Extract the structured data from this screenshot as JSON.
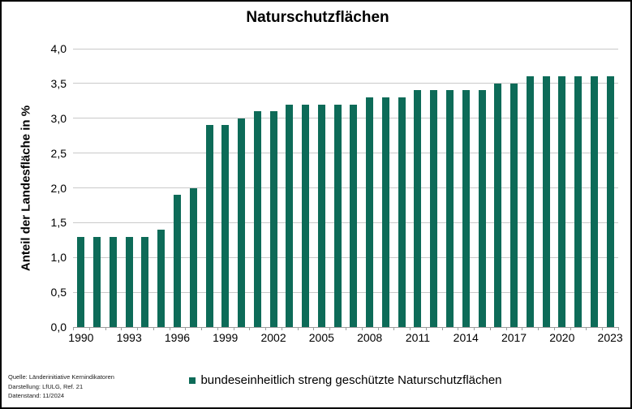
{
  "chart_data": {
    "type": "bar",
    "title": "Naturschutzflächen",
    "ylabel": "Anteil der Landesfläche in %",
    "xlabel": "",
    "categories": [
      1990,
      1991,
      1992,
      1993,
      1994,
      1995,
      1996,
      1997,
      1998,
      1999,
      2000,
      2001,
      2002,
      2003,
      2004,
      2005,
      2006,
      2007,
      2008,
      2009,
      2010,
      2011,
      2012,
      2013,
      2014,
      2015,
      2016,
      2017,
      2018,
      2019,
      2020,
      2021,
      2022,
      2023
    ],
    "values": [
      1.3,
      1.3,
      1.3,
      1.3,
      1.3,
      1.4,
      1.9,
      2.0,
      2.9,
      2.9,
      3.0,
      3.1,
      3.1,
      3.2,
      3.2,
      3.2,
      3.2,
      3.2,
      3.3,
      3.3,
      3.3,
      3.4,
      3.4,
      3.4,
      3.4,
      3.4,
      3.5,
      3.5,
      3.6,
      3.6,
      3.6,
      3.6,
      3.6,
      3.6
    ],
    "ylim": [
      0,
      4
    ],
    "ytick_step": 0.5,
    "ytick_labels": [
      "0,0",
      "0,5",
      "1,0",
      "1,5",
      "2,0",
      "2,5",
      "3,0",
      "3,5",
      "4,0"
    ],
    "xtick_labels": [
      "1990",
      "1993",
      "1996",
      "1999",
      "2002",
      "2005",
      "2008",
      "2011",
      "2014",
      "2017",
      "2020",
      "2023"
    ],
    "xtick_label_every": 3,
    "grid": "horizontal",
    "legend_label": "bundeseinheitlich streng geschützte Naturschutzflächen",
    "legend_position": "bottom-center",
    "bar_color": "#0d6b58",
    "gridline_color": "#c9c9c9",
    "axis_color": "#9b9b9b"
  },
  "source": {
    "line1": "Quelle: Länderinitiative Kernindikatoren",
    "line2": "Darstellung: LfULG, Ref. 21",
    "line3": "Datenstand: 11/2024"
  }
}
